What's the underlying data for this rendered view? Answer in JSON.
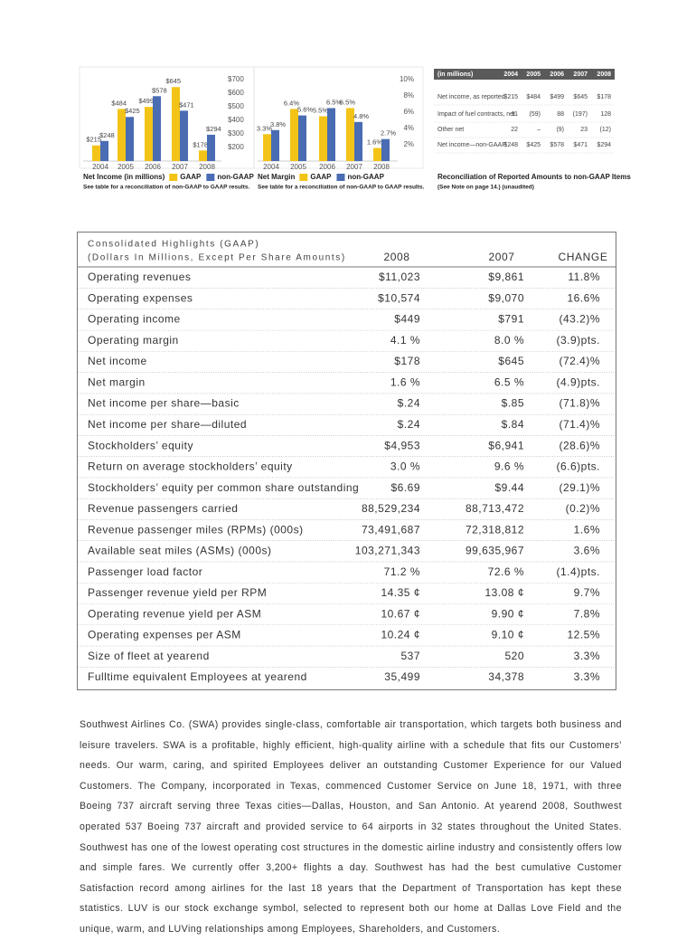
{
  "chart_data": [
    {
      "type": "bar",
      "title": "Net Income (in millions)",
      "note": "See table for a reconciliation of non-GAAP to GAAP results.",
      "categories": [
        "2004",
        "2005",
        "2006",
        "2007",
        "2008"
      ],
      "series": [
        {
          "name": "GAAP",
          "color": "#f3c417",
          "values": [
            215,
            484,
            499,
            645,
            178
          ],
          "value_labels": [
            "$215",
            "$484",
            "$499",
            "$645",
            "$178"
          ]
        },
        {
          "name": "non-GAAP",
          "color": "#4a6cb3",
          "values": [
            248,
            425,
            578,
            471,
            294
          ],
          "value_labels": [
            "$248",
            "$425",
            "$578",
            "$471",
            "$294"
          ]
        }
      ],
      "ylim": [
        100,
        700
      ],
      "yticks": [
        {
          "value": 700,
          "label": "$700"
        },
        {
          "value": 600,
          "label": "$600"
        },
        {
          "value": 500,
          "label": "$500"
        },
        {
          "value": 400,
          "label": "$400"
        },
        {
          "value": 300,
          "label": "$300"
        },
        {
          "value": 200,
          "label": "$200"
        }
      ]
    },
    {
      "type": "bar",
      "title": "Net Margin",
      "note": "See table for a reconciliation of non-GAAP to GAAP results.",
      "categories": [
        "2004",
        "2005",
        "2006",
        "2007",
        "2008"
      ],
      "series": [
        {
          "name": "GAAP",
          "color": "#f3c417",
          "values": [
            3.3,
            6.4,
            5.5,
            6.5,
            1.6
          ],
          "value_labels": [
            "3.3%",
            "6.4%",
            "5.5%",
            "6.5%",
            "1.6%"
          ]
        },
        {
          "name": "non-GAAP",
          "color": "#4a6cb3",
          "values": [
            3.8,
            5.6,
            6.5,
            4.8,
            2.7
          ],
          "value_labels": [
            "3.8%",
            "5.6%",
            "6.5%",
            "4.8%",
            "2.7%"
          ]
        }
      ],
      "ylim": [
        0,
        10
      ],
      "yticks": [
        {
          "value": 10,
          "label": "10%"
        },
        {
          "value": 8,
          "label": "8%"
        },
        {
          "value": 6,
          "label": "6%"
        },
        {
          "value": 4,
          "label": "4%"
        },
        {
          "value": 2,
          "label": "2%"
        }
      ]
    }
  ],
  "reconciliation_table": {
    "header": [
      "(in millions)",
      "2004",
      "2005",
      "2006",
      "2007",
      "2008"
    ],
    "rows": [
      [
        "Net income, as reported",
        "$215",
        "$484",
        "$499",
        "$645",
        "$178"
      ],
      [
        "Impact of fuel contracts, net",
        "11",
        "(59)",
        "88",
        "(197)",
        "128"
      ],
      [
        "Other net",
        "22",
        "–",
        "(9)",
        "23",
        "(12)"
      ],
      [
        "Net income—non-GAAP",
        "$248",
        "$425",
        "$578",
        "$471",
        "$294"
      ]
    ],
    "title": "Reconciliation of Reported Amounts to non-GAAP Items",
    "note": "(See Note on page 14.) (unaudited)"
  },
  "highlights_table": {
    "title": "Consolidated Highlights (GAAP)",
    "subtitle": "(Dollars In Millions, Except Per Share Amounts)",
    "columns": [
      "2008",
      "2007",
      "CHANGE"
    ],
    "rows": [
      [
        "Operating revenues",
        "$11,023",
        "$9,861",
        "11.8%"
      ],
      [
        "Operating expenses",
        "$10,574",
        "$9,070",
        "16.6%"
      ],
      [
        "Operating income",
        "$449",
        "$791",
        "(43.2)%"
      ],
      [
        "Operating margin",
        "4.1 %",
        "8.0 %",
        "(3.9)pts."
      ],
      [
        "Net income",
        "$178",
        "$645",
        "(72.4)%"
      ],
      [
        "Net margin",
        "1.6 %",
        "6.5 %",
        "(4.9)pts."
      ],
      [
        "Net income per share—basic",
        "$.24",
        "$.85",
        "(71.8)%"
      ],
      [
        "Net income per share—diluted",
        "$.24",
        "$.84",
        "(71.4)%"
      ],
      [
        "Stockholders’ equity",
        "$4,953",
        "$6,941",
        "(28.6)%"
      ],
      [
        "Return on average stockholders’ equity",
        "3.0 %",
        "9.6 %",
        "(6.6)pts."
      ],
      [
        "Stockholders’ equity per common share outstanding",
        "$6.69",
        "$9.44",
        "(29.1)%"
      ],
      [
        "Revenue passengers carried",
        "88,529,234",
        "88,713,472",
        "(0.2)%"
      ],
      [
        "Revenue passenger miles (RPMs) (000s)",
        "73,491,687",
        "72,318,812",
        "1.6%"
      ],
      [
        "Available seat miles (ASMs) (000s)",
        "103,271,343",
        "99,635,967",
        "3.6%"
      ],
      [
        "Passenger load factor",
        "71.2 %",
        "72.6 %",
        "(1.4)pts."
      ],
      [
        "Passenger revenue yield per RPM",
        "14.35 ¢",
        "13.08 ¢",
        "9.7%"
      ],
      [
        "Operating revenue yield per ASM",
        "10.67 ¢",
        "9.90 ¢",
        "7.8%"
      ],
      [
        "Operating expenses per ASM",
        "10.24 ¢",
        "9.10 ¢",
        "12.5%"
      ],
      [
        "Size of fleet at yearend",
        "537",
        "520",
        "3.3%"
      ],
      [
        "Fulltime equivalent Employees at yearend",
        "35,499",
        "34,378",
        "3.3%"
      ]
    ]
  },
  "paragraph": "Southwest Airlines Co. (SWA) provides single-class, comfortable air transportation, which targets both business and leisure travelers. SWA is a profitable, highly efficient, high-quality airline with a schedule that fits our Customers’ needs. Our warm, caring, and spirited Employees deliver an outstanding Customer Experience for our Valued Customers. The Company, incorporated in Texas, commenced Customer Service on June 18, 1971, with three Boeing 737 aircraft serving three Texas cities—Dallas, Houston, and San Antonio. At yearend 2008, Southwest operated 537 Boeing 737 aircraft and provided service to 64 airports in 32 states throughout the United States. Southwest has one of the lowest operating cost structures in the domestic airline industry and consistently offers low and simple fares. We currently offer 3,200+ flights a day. Southwest has had the best cumulative Customer Satisfaction record among airlines for the last 18 years that the Department of Transportation has kept these statistics. LUV is our stock exchange symbol, selected to represent both our home at Dallas Love Field and the unique, warm, and LUVing relationships among Employees, Shareholders, and Customers."
}
